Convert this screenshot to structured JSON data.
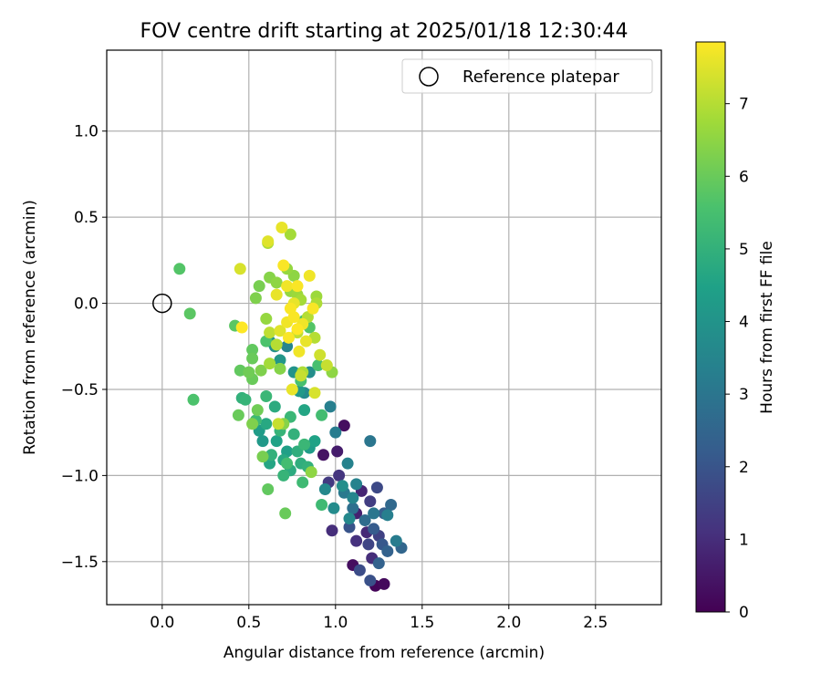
{
  "chart_data": {
    "type": "scatter",
    "title": "FOV centre drift starting at 2025/01/18 12:30:44",
    "xlabel": "Angular distance from reference (arcmin)",
    "ylabel": "Rotation from reference (arcmin)",
    "xlim": [
      -0.32,
      2.88
    ],
    "ylim": [
      -1.75,
      1.47
    ],
    "xticks": [
      0.0,
      0.5,
      1.0,
      1.5,
      2.0,
      2.5
    ],
    "xtick_labels": [
      "0.0",
      "0.5",
      "1.0",
      "1.5",
      "2.0",
      "2.5"
    ],
    "yticks": [
      1.0,
      0.5,
      0.0,
      -0.5,
      -1.0,
      -1.5
    ],
    "ytick_labels": [
      "1.0",
      "0.5",
      "0.0",
      "−0.5",
      "−1.0",
      "−1.5"
    ],
    "grid": true,
    "legend": {
      "placement": "top-right",
      "entries": [
        "Reference platepar"
      ]
    },
    "reference_point": {
      "name": "Reference platepar",
      "x": 0.0,
      "y": 0.0,
      "marker": "open-circle"
    },
    "colorbar": {
      "label": "Hours from first FF file",
      "min": 0,
      "max": 7.85,
      "ticks": [
        0,
        1,
        2,
        3,
        4,
        5,
        6,
        7
      ],
      "tick_labels": [
        "0",
        "1",
        "2",
        "3",
        "4",
        "5",
        "6",
        "7"
      ],
      "colormap": "viridis"
    },
    "points": [
      {
        "x": 1.23,
        "y": -1.64,
        "h": 0.1
      },
      {
        "x": 1.1,
        "y": -1.52,
        "h": 0.3
      },
      {
        "x": 1.28,
        "y": -1.63,
        "h": 0.2
      },
      {
        "x": 1.05,
        "y": -0.71,
        "h": 0.3
      },
      {
        "x": 0.93,
        "y": -0.88,
        "h": 0.4
      },
      {
        "x": 1.01,
        "y": -0.86,
        "h": 0.6
      },
      {
        "x": 1.15,
        "y": -1.09,
        "h": 0.8
      },
      {
        "x": 1.12,
        "y": -1.22,
        "h": 0.7
      },
      {
        "x": 1.18,
        "y": -1.33,
        "h": 0.9
      },
      {
        "x": 1.21,
        "y": -1.48,
        "h": 1.0
      },
      {
        "x": 1.12,
        "y": -1.38,
        "h": 1.1
      },
      {
        "x": 0.98,
        "y": -1.32,
        "h": 1.0
      },
      {
        "x": 1.02,
        "y": -1.0,
        "h": 1.2
      },
      {
        "x": 0.96,
        "y": -1.04,
        "h": 1.3
      },
      {
        "x": 1.2,
        "y": -1.15,
        "h": 1.4
      },
      {
        "x": 1.25,
        "y": -1.35,
        "h": 1.5
      },
      {
        "x": 1.19,
        "y": -1.4,
        "h": 1.6
      },
      {
        "x": 1.24,
        "y": -1.07,
        "h": 1.7
      },
      {
        "x": 1.14,
        "y": -1.55,
        "h": 1.8
      },
      {
        "x": 1.2,
        "y": -1.61,
        "h": 1.9
      },
      {
        "x": 1.08,
        "y": -1.3,
        "h": 2.0
      },
      {
        "x": 1.27,
        "y": -1.4,
        "h": 2.1
      },
      {
        "x": 1.22,
        "y": -1.31,
        "h": 2.2
      },
      {
        "x": 1.28,
        "y": -1.22,
        "h": 2.3
      },
      {
        "x": 1.3,
        "y": -1.44,
        "h": 2.4
      },
      {
        "x": 1.38,
        "y": -1.42,
        "h": 2.5
      },
      {
        "x": 1.32,
        "y": -1.17,
        "h": 2.6
      },
      {
        "x": 1.25,
        "y": -1.51,
        "h": 2.4
      },
      {
        "x": 1.17,
        "y": -1.26,
        "h": 2.7
      },
      {
        "x": 1.1,
        "y": -1.19,
        "h": 2.8
      },
      {
        "x": 1.2,
        "y": -0.8,
        "h": 3.0
      },
      {
        "x": 1.0,
        "y": -0.75,
        "h": 3.2
      },
      {
        "x": 0.97,
        "y": -0.6,
        "h": 3.3
      },
      {
        "x": 1.07,
        "y": -0.93,
        "h": 3.4
      },
      {
        "x": 1.05,
        "y": -1.1,
        "h": 3.1
      },
      {
        "x": 1.1,
        "y": -1.13,
        "h": 3.5
      },
      {
        "x": 1.35,
        "y": -1.38,
        "h": 3.2
      },
      {
        "x": 1.22,
        "y": -1.22,
        "h": 3.0
      },
      {
        "x": 1.3,
        "y": -1.23,
        "h": 3.3
      },
      {
        "x": 0.94,
        "y": -1.08,
        "h": 3.6
      },
      {
        "x": 0.99,
        "y": -1.19,
        "h": 3.7
      },
      {
        "x": 1.04,
        "y": -1.06,
        "h": 3.8
      },
      {
        "x": 1.12,
        "y": -1.05,
        "h": 3.4
      },
      {
        "x": 1.08,
        "y": -1.25,
        "h": 3.6
      },
      {
        "x": 0.72,
        "y": -0.25,
        "h": 3.5
      },
      {
        "x": 0.82,
        "y": -0.52,
        "h": 3.7
      },
      {
        "x": 0.85,
        "y": -0.4,
        "h": 3.8
      },
      {
        "x": 0.65,
        "y": -0.25,
        "h": 3.9
      },
      {
        "x": 0.62,
        "y": -0.22,
        "h": 4.0
      },
      {
        "x": 0.68,
        "y": -0.33,
        "h": 4.1
      },
      {
        "x": 0.76,
        "y": -0.4,
        "h": 4.0
      },
      {
        "x": 0.79,
        "y": -0.51,
        "h": 4.2
      },
      {
        "x": 0.85,
        "y": -0.84,
        "h": 4.3
      },
      {
        "x": 0.72,
        "y": -0.86,
        "h": 4.4
      },
      {
        "x": 0.66,
        "y": -0.8,
        "h": 4.5
      },
      {
        "x": 0.58,
        "y": -0.8,
        "h": 4.2
      },
      {
        "x": 0.56,
        "y": -0.74,
        "h": 4.3
      },
      {
        "x": 0.62,
        "y": -0.93,
        "h": 4.6
      },
      {
        "x": 0.7,
        "y": -0.91,
        "h": 4.7
      },
      {
        "x": 0.74,
        "y": -0.97,
        "h": 4.8
      },
      {
        "x": 0.78,
        "y": -0.86,
        "h": 4.9
      },
      {
        "x": 0.82,
        "y": -0.62,
        "h": 4.6
      },
      {
        "x": 0.6,
        "y": -0.7,
        "h": 4.7
      },
      {
        "x": 0.65,
        "y": -0.6,
        "h": 4.8
      },
      {
        "x": 0.76,
        "y": -0.76,
        "h": 5.0
      },
      {
        "x": 0.8,
        "y": -0.93,
        "h": 4.9
      },
      {
        "x": 0.88,
        "y": -0.8,
        "h": 4.5
      },
      {
        "x": 0.84,
        "y": -0.95,
        "h": 5.0
      },
      {
        "x": 0.7,
        "y": -1.0,
        "h": 5.1
      },
      {
        "x": 0.63,
        "y": -0.88,
        "h": 5.0
      },
      {
        "x": 0.74,
        "y": -0.66,
        "h": 5.2
      },
      {
        "x": 0.68,
        "y": -0.74,
        "h": 5.1
      },
      {
        "x": 0.82,
        "y": -0.82,
        "h": 5.2
      },
      {
        "x": 0.92,
        "y": -1.17,
        "h": 5.3
      },
      {
        "x": 0.72,
        "y": -0.93,
        "h": 5.4
      },
      {
        "x": 0.81,
        "y": -1.04,
        "h": 5.3
      },
      {
        "x": 0.46,
        "y": -0.55,
        "h": 5.0
      },
      {
        "x": 0.48,
        "y": -0.56,
        "h": 5.1
      },
      {
        "x": 0.6,
        "y": -0.54,
        "h": 5.2
      },
      {
        "x": 0.54,
        "y": -0.68,
        "h": 5.3
      },
      {
        "x": 0.92,
        "y": -0.65,
        "h": 5.4
      },
      {
        "x": 0.8,
        "y": -0.45,
        "h": 5.5
      },
      {
        "x": 0.9,
        "y": -0.36,
        "h": 5.5
      },
      {
        "x": 0.6,
        "y": -0.22,
        "h": 5.6
      },
      {
        "x": 0.85,
        "y": -0.14,
        "h": 5.7
      },
      {
        "x": 0.82,
        "y": -0.1,
        "h": 5.6
      },
      {
        "x": 0.18,
        "y": -0.56,
        "h": 5.6
      },
      {
        "x": 0.1,
        "y": 0.2,
        "h": 5.7
      },
      {
        "x": 0.16,
        "y": -0.06,
        "h": 5.8
      },
      {
        "x": 0.42,
        "y": -0.13,
        "h": 5.8
      },
      {
        "x": 0.52,
        "y": -0.27,
        "h": 5.9
      },
      {
        "x": 0.52,
        "y": -0.32,
        "h": 6.0
      },
      {
        "x": 0.45,
        "y": -0.39,
        "h": 5.9
      },
      {
        "x": 0.52,
        "y": -0.44,
        "h": 6.0
      },
      {
        "x": 0.5,
        "y": -0.4,
        "h": 6.1
      },
      {
        "x": 0.44,
        "y": -0.65,
        "h": 6.0
      },
      {
        "x": 0.55,
        "y": -0.62,
        "h": 6.1
      },
      {
        "x": 0.61,
        "y": -1.08,
        "h": 5.9
      },
      {
        "x": 0.71,
        "y": -1.22,
        "h": 6.0
      },
      {
        "x": 0.58,
        "y": -0.89,
        "h": 6.2
      },
      {
        "x": 0.52,
        "y": -0.7,
        "h": 6.3
      },
      {
        "x": 0.7,
        "y": -0.7,
        "h": 6.4
      },
      {
        "x": 0.86,
        "y": -0.98,
        "h": 6.5
      },
      {
        "x": 0.57,
        "y": -0.39,
        "h": 6.3
      },
      {
        "x": 0.68,
        "y": -0.38,
        "h": 6.4
      },
      {
        "x": 0.56,
        "y": 0.1,
        "h": 6.2
      },
      {
        "x": 0.54,
        "y": 0.03,
        "h": 6.3
      },
      {
        "x": 0.62,
        "y": 0.15,
        "h": 6.4
      },
      {
        "x": 0.66,
        "y": 0.12,
        "h": 6.5
      },
      {
        "x": 0.72,
        "y": 0.2,
        "h": 6.6
      },
      {
        "x": 0.76,
        "y": 0.16,
        "h": 6.5
      },
      {
        "x": 0.74,
        "y": 0.07,
        "h": 6.6
      },
      {
        "x": 0.78,
        "y": 0.05,
        "h": 6.7
      },
      {
        "x": 0.8,
        "y": 0.02,
        "h": 6.8
      },
      {
        "x": 0.74,
        "y": 0.4,
        "h": 6.8
      },
      {
        "x": 0.61,
        "y": 0.35,
        "h": 6.9
      },
      {
        "x": 0.89,
        "y": 0.04,
        "h": 6.7
      },
      {
        "x": 0.89,
        "y": 0.0,
        "h": 6.9
      },
      {
        "x": 0.81,
        "y": -0.4,
        "h": 6.9
      },
      {
        "x": 0.84,
        "y": -0.08,
        "h": 7.0
      },
      {
        "x": 0.88,
        "y": -0.2,
        "h": 7.0
      },
      {
        "x": 0.98,
        "y": -0.4,
        "h": 6.5
      },
      {
        "x": 0.6,
        "y": -0.09,
        "h": 6.6
      },
      {
        "x": 0.62,
        "y": -0.35,
        "h": 6.8
      },
      {
        "x": 0.66,
        "y": -0.24,
        "h": 7.0
      },
      {
        "x": 0.62,
        "y": -0.17,
        "h": 7.1
      },
      {
        "x": 0.78,
        "y": -0.17,
        "h": 7.1
      },
      {
        "x": 0.67,
        "y": -0.7,
        "h": 7.2
      },
      {
        "x": 0.8,
        "y": -0.42,
        "h": 7.2
      },
      {
        "x": 0.45,
        "y": 0.2,
        "h": 7.4
      },
      {
        "x": 0.61,
        "y": 0.36,
        "h": 7.5
      },
      {
        "x": 0.69,
        "y": 0.44,
        "h": 7.6
      },
      {
        "x": 0.7,
        "y": 0.22,
        "h": 7.8
      },
      {
        "x": 0.78,
        "y": 0.1,
        "h": 7.8
      },
      {
        "x": 0.66,
        "y": 0.05,
        "h": 7.6
      },
      {
        "x": 0.72,
        "y": 0.1,
        "h": 7.7
      },
      {
        "x": 0.85,
        "y": 0.16,
        "h": 7.7
      },
      {
        "x": 0.74,
        "y": -0.03,
        "h": 7.8
      },
      {
        "x": 0.76,
        "y": -0.08,
        "h": 7.8
      },
      {
        "x": 0.72,
        "y": -0.11,
        "h": 7.7
      },
      {
        "x": 0.78,
        "y": -0.15,
        "h": 7.9
      },
      {
        "x": 0.83,
        "y": -0.22,
        "h": 7.6
      },
      {
        "x": 0.79,
        "y": -0.28,
        "h": 7.7
      },
      {
        "x": 0.73,
        "y": -0.2,
        "h": 7.8
      },
      {
        "x": 0.46,
        "y": -0.14,
        "h": 7.9
      },
      {
        "x": 0.68,
        "y": -0.16,
        "h": 7.5
      },
      {
        "x": 0.75,
        "y": -0.5,
        "h": 7.6
      },
      {
        "x": 0.88,
        "y": -0.52,
        "h": 7.4
      },
      {
        "x": 0.91,
        "y": -0.3,
        "h": 7.3
      },
      {
        "x": 0.95,
        "y": -0.36,
        "h": 7.2
      },
      {
        "x": 0.81,
        "y": -0.12,
        "h": 7.7
      },
      {
        "x": 0.87,
        "y": -0.03,
        "h": 7.8
      },
      {
        "x": 0.76,
        "y": 0.0,
        "h": 7.6
      }
    ]
  }
}
